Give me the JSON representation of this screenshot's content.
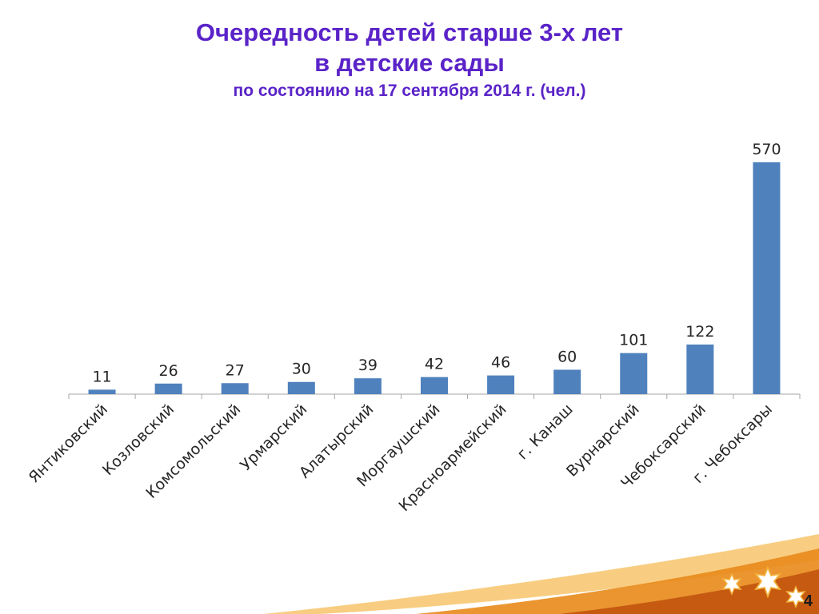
{
  "colors": {
    "title": "#5a23c8",
    "bar": "#4f81bd",
    "axis": "#a6a6a6",
    "text": "#262626",
    "swoosh_dark": "#c65a11",
    "swoosh_light": "#f7c46b"
  },
  "slide": {
    "title_line1": "Очередность детей старше 3-х лет",
    "title_line2": "в детские сады",
    "subtitle": "по состоянию на 17 сентября 2014 г. (чел.)",
    "page_number": "4"
  },
  "chart_data": {
    "type": "bar",
    "categories": [
      "Янтиковский",
      "Козловский",
      "Комсомольский",
      "Урмарский",
      "Алатырский",
      "Моргаушский",
      "Красноармейский",
      "г. Канаш",
      "Вурнарский",
      "Чебоксарский",
      "г. Чебоксары"
    ],
    "values": [
      11,
      26,
      27,
      30,
      39,
      42,
      46,
      60,
      101,
      122,
      570
    ],
    "title": "Очередность детей старше 3-х лет в детские сады",
    "subtitle": "по состоянию на 17 сентября 2014 г. (чел.)",
    "ylim": [
      0,
      570
    ],
    "grid": false,
    "legend": "none",
    "data_labels": true
  }
}
